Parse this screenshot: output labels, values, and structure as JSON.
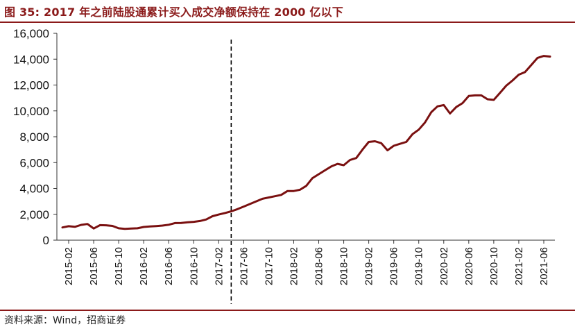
{
  "title": "图 35:  2017 年之前陆股通累计买入成交净额保持在 2000 亿以下",
  "source": "资料来源：Wind，招商证券",
  "colors": {
    "accent": "#8B1A1A",
    "series": "#7A1010",
    "text": "#111111"
  },
  "chart_data": {
    "type": "line",
    "ylim": [
      0,
      16000
    ],
    "yticks": [
      "16,000",
      "14,000",
      "12,000",
      "10,000",
      "8,000",
      "6,000",
      "4,000",
      "2,000",
      "0"
    ],
    "ytick_values": [
      16000,
      14000,
      12000,
      10000,
      8000,
      6000,
      4000,
      2000,
      0
    ],
    "xticks": [
      "2015-02",
      "2015-06",
      "2015-10",
      "2016-02",
      "2016-06",
      "2016-10",
      "2017-02",
      "2017-06",
      "2017-10",
      "2018-02",
      "2018-06",
      "2018-10",
      "2019-02",
      "2019-06",
      "2019-10",
      "2020-02",
      "2020-06",
      "2020-10",
      "2021-02",
      "2021-06"
    ],
    "dashed_marker_x": "2017-04",
    "x": [
      "2015-01",
      "2015-02",
      "2015-03",
      "2015-04",
      "2015-05",
      "2015-06",
      "2015-07",
      "2015-08",
      "2015-09",
      "2015-10",
      "2015-11",
      "2015-12",
      "2016-01",
      "2016-02",
      "2016-03",
      "2016-04",
      "2016-05",
      "2016-06",
      "2016-07",
      "2016-08",
      "2016-09",
      "2016-10",
      "2016-11",
      "2016-12",
      "2017-01",
      "2017-02",
      "2017-03",
      "2017-04",
      "2017-05",
      "2017-06",
      "2017-07",
      "2017-08",
      "2017-09",
      "2017-10",
      "2017-11",
      "2017-12",
      "2018-01",
      "2018-02",
      "2018-03",
      "2018-04",
      "2018-05",
      "2018-06",
      "2018-07",
      "2018-08",
      "2018-09",
      "2018-10",
      "2018-11",
      "2018-12",
      "2019-01",
      "2019-02",
      "2019-03",
      "2019-04",
      "2019-05",
      "2019-06",
      "2019-07",
      "2019-08",
      "2019-09",
      "2019-10",
      "2019-11",
      "2019-12",
      "2020-01",
      "2020-02",
      "2020-03",
      "2020-04",
      "2020-05",
      "2020-06",
      "2020-07",
      "2020-08",
      "2020-09",
      "2020-10",
      "2020-11",
      "2020-12",
      "2021-01",
      "2021-02",
      "2021-03",
      "2021-04",
      "2021-05",
      "2021-06",
      "2021-07"
    ],
    "series": [
      {
        "values": [
          980,
          1080,
          1030,
          1180,
          1250,
          900,
          1160,
          1150,
          1100,
          920,
          870,
          900,
          920,
          1020,
          1060,
          1090,
          1130,
          1190,
          1320,
          1330,
          1380,
          1420,
          1480,
          1600,
          1850,
          1980,
          2100,
          2230,
          2400,
          2600,
          2800,
          3000,
          3200,
          3300,
          3400,
          3500,
          3800,
          3800,
          3900,
          4200,
          4800,
          5100,
          5400,
          5700,
          5900,
          5800,
          6200,
          6350,
          7000,
          7600,
          7650,
          7500,
          6950,
          7300,
          7450,
          7600,
          8200,
          8550,
          9100,
          9900,
          10350,
          10450,
          9800,
          10300,
          10600,
          11150,
          11200,
          11200,
          10900,
          10850,
          11400,
          11950,
          12350,
          12800,
          13000,
          13550,
          14100,
          14250,
          14200
        ]
      }
    ]
  }
}
